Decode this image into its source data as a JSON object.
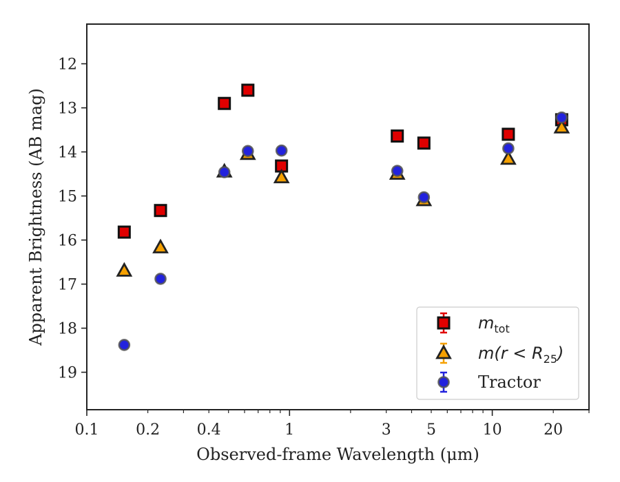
{
  "chart_data": {
    "type": "scatter",
    "title": "",
    "xlabel": "Observed-frame Wavelength (μm)",
    "ylabel": "Apparent Brightness (AB mag)",
    "xscale": "log",
    "xlim": [
      0.1,
      30
    ],
    "ylim": [
      19.85,
      11.1
    ],
    "y_inverted": true,
    "grid": false,
    "legend_position": "lower-right",
    "x_ticks": [
      {
        "value": 0.1,
        "label": "0.1"
      },
      {
        "value": 0.2,
        "label": "0.2"
      },
      {
        "value": 0.4,
        "label": "0.4"
      },
      {
        "value": 1,
        "label": "1"
      },
      {
        "value": 3,
        "label": "3"
      },
      {
        "value": 5,
        "label": "5"
      },
      {
        "value": 10,
        "label": "10"
      },
      {
        "value": 20,
        "label": "20"
      }
    ],
    "y_ticks": [
      {
        "value": 12,
        "label": "12"
      },
      {
        "value": 13,
        "label": "13"
      },
      {
        "value": 14,
        "label": "14"
      },
      {
        "value": 15,
        "label": "15"
      },
      {
        "value": 16,
        "label": "16"
      },
      {
        "value": 17,
        "label": "17"
      },
      {
        "value": 18,
        "label": "18"
      },
      {
        "value": 19,
        "label": "19"
      }
    ],
    "series": [
      {
        "name": "m_tot",
        "legend_math": "m",
        "legend_sub": "tot",
        "marker": "square",
        "color": "#e00000",
        "error_color": "#e00000",
        "points": [
          {
            "x": 0.153,
            "y": 15.82
          },
          {
            "x": 0.231,
            "y": 15.33
          },
          {
            "x": 0.477,
            "y": 12.9
          },
          {
            "x": 0.623,
            "y": 12.6
          },
          {
            "x": 0.913,
            "y": 14.32
          },
          {
            "x": 3.4,
            "y": 13.64
          },
          {
            "x": 4.6,
            "y": 13.8
          },
          {
            "x": 12.0,
            "y": 13.6
          },
          {
            "x": 22.0,
            "y": 13.27
          }
        ]
      },
      {
        "name": "m(r < R25)",
        "legend_math": "m(r < R",
        "legend_sub": "25",
        "legend_tail": ")",
        "marker": "triangle",
        "color": "#f5a000",
        "error_color": "#f5a000",
        "points": [
          {
            "x": 0.153,
            "y": 16.7
          },
          {
            "x": 0.231,
            "y": 16.17
          },
          {
            "x": 0.477,
            "y": 14.45
          },
          {
            "x": 0.623,
            "y": 14.05
          },
          {
            "x": 0.913,
            "y": 14.58
          },
          {
            "x": 3.4,
            "y": 14.5
          },
          {
            "x": 4.6,
            "y": 15.1
          },
          {
            "x": 12.0,
            "y": 14.16
          },
          {
            "x": 22.0,
            "y": 13.45
          }
        ]
      },
      {
        "name": "Tractor",
        "legend_text": "Tractor",
        "marker": "circle",
        "color": "#2222dd",
        "error_color": "#2222dd",
        "points": [
          {
            "x": 0.153,
            "y": 18.38
          },
          {
            "x": 0.231,
            "y": 16.88
          },
          {
            "x": 0.477,
            "y": 14.46
          },
          {
            "x": 0.623,
            "y": 13.98
          },
          {
            "x": 0.913,
            "y": 13.97
          },
          {
            "x": 3.4,
            "y": 14.43
          },
          {
            "x": 4.6,
            "y": 15.03
          },
          {
            "x": 12.0,
            "y": 13.92
          },
          {
            "x": 22.0,
            "y": 13.22
          }
        ]
      }
    ]
  }
}
